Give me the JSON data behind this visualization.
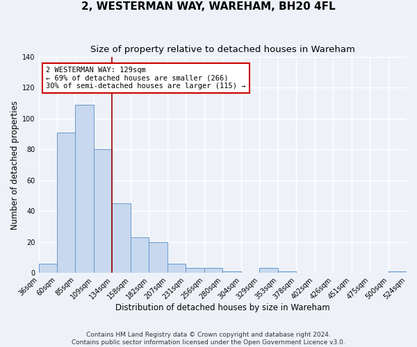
{
  "title": "2, WESTERMAN WAY, WAREHAM, BH20 4FL",
  "subtitle": "Size of property relative to detached houses in Wareham",
  "xlabel": "Distribution of detached houses by size in Wareham",
  "ylabel": "Number of detached properties",
  "bar_values": [
    6,
    91,
    109,
    80,
    45,
    23,
    20,
    6,
    3,
    3,
    1,
    0,
    3,
    1,
    0,
    0,
    0,
    0,
    0,
    1
  ],
  "bin_labels": [
    "36sqm",
    "60sqm",
    "85sqm",
    "109sqm",
    "134sqm",
    "158sqm",
    "182sqm",
    "207sqm",
    "231sqm",
    "256sqm",
    "280sqm",
    "304sqm",
    "329sqm",
    "353sqm",
    "378sqm",
    "402sqm",
    "426sqm",
    "451sqm",
    "475sqm",
    "500sqm",
    "524sqm"
  ],
  "bar_color": "#c8d8ee",
  "bar_edge_color": "#6699cc",
  "vline_x": 4,
  "vline_color": "#990000",
  "annotation_text": "2 WESTERMAN WAY: 129sqm\n← 69% of detached houses are smaller (266)\n30% of semi-detached houses are larger (115) →",
  "annotation_box_facecolor": "#ffffff",
  "annotation_box_edgecolor": "#cc0000",
  "ylim": [
    0,
    140
  ],
  "yticks": [
    0,
    20,
    40,
    60,
    80,
    100,
    120,
    140
  ],
  "footer_line1": "Contains HM Land Registry data © Crown copyright and database right 2024.",
  "footer_line2": "Contains public sector information licensed under the Open Government Licence v3.0.",
  "background_color": "#eef2f8",
  "grid_color": "#ffffff",
  "title_fontsize": 11,
  "subtitle_fontsize": 9.5,
  "axis_label_fontsize": 8.5,
  "tick_fontsize": 7,
  "annotation_fontsize": 7.5,
  "footer_fontsize": 6.5
}
